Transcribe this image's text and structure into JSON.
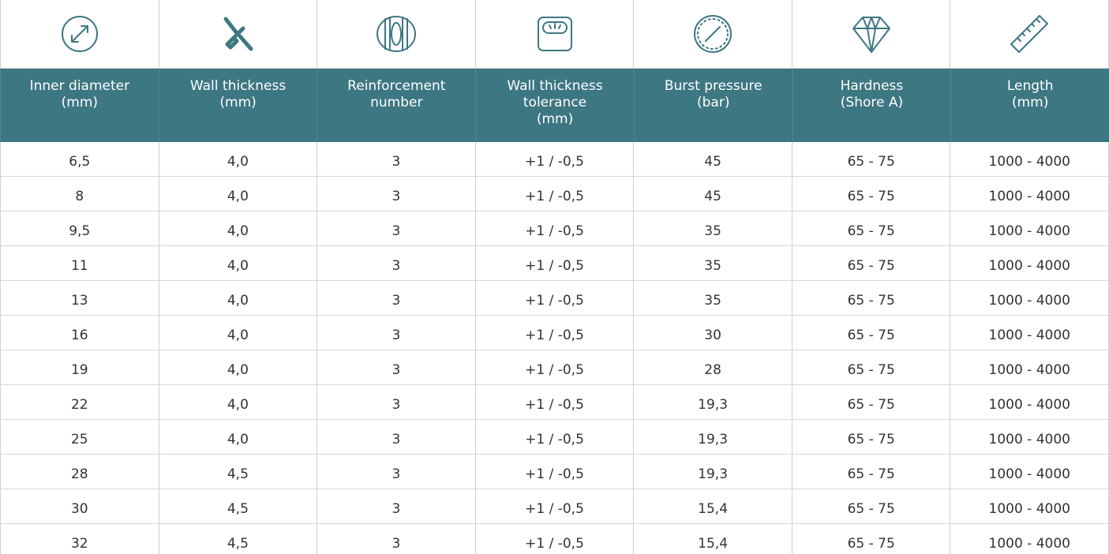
{
  "table": {
    "headers": [
      [
        "Inner diameter",
        "(mm)"
      ],
      [
        "Wall thickness",
        "(mm)"
      ],
      [
        "Reinforcement",
        "number"
      ],
      [
        "Wall thickness",
        "tolerance",
        "(mm)"
      ],
      [
        "Burst pressure",
        "(bar)"
      ],
      [
        "Hardness",
        "(Shore A)"
      ],
      [
        "Length",
        "(mm)"
      ]
    ],
    "rows": [
      [
        "6,5",
        "4,0",
        "3",
        "+1 / -0,5",
        "45",
        "65 - 75",
        "1000 - 4000"
      ],
      [
        "8",
        "4,0",
        "3",
        "+1 / -0,5",
        "45",
        "65 - 75",
        "1000 - 4000"
      ],
      [
        "9,5",
        "4,0",
        "3",
        "+1 / -0,5",
        "35",
        "65 - 75",
        "1000 - 4000"
      ],
      [
        "11",
        "4,0",
        "3",
        "+1 / -0,5",
        "35",
        "65 - 75",
        "1000 - 4000"
      ],
      [
        "13",
        "4,0",
        "3",
        "+1 / -0,5",
        "35",
        "65 - 75",
        "1000 - 4000"
      ],
      [
        "16",
        "4,0",
        "3",
        "+1 / -0,5",
        "30",
        "65 - 75",
        "1000 - 4000"
      ],
      [
        "19",
        "4,0",
        "3",
        "+1 / -0,5",
        "28",
        "65 - 75",
        "1000 - 4000"
      ],
      [
        "22",
        "4,0",
        "3",
        "+1 / -0,5",
        "19,3",
        "65 - 75",
        "1000 - 4000"
      ],
      [
        "25",
        "4,0",
        "3",
        "+1 / -0,5",
        "19,3",
        "65 - 75",
        "1000 - 4000"
      ],
      [
        "28",
        "4,5",
        "3",
        "+1 / -0,5",
        "19,3",
        "65 - 75",
        "1000 - 4000"
      ],
      [
        "30",
        "4,5",
        "3",
        "+1 / -0,5",
        "15,4",
        "65 - 75",
        "1000 - 4000"
      ],
      [
        "32",
        "4,5",
        "3",
        "+1 / -0,5",
        "15,4",
        "65 - 75",
        "1000 - 4000"
      ]
    ]
  }
}
